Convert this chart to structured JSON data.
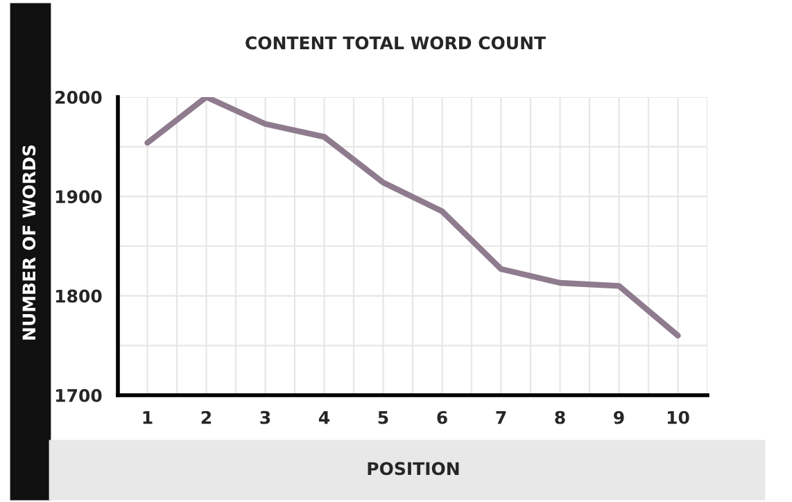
{
  "chart_data": {
    "type": "line",
    "title": "CONTENT TOTAL WORD COUNT",
    "xlabel": "POSITION",
    "ylabel": "NUMBER OF WORDS",
    "x": [
      1,
      2,
      3,
      4,
      5,
      6,
      7,
      8,
      9,
      10
    ],
    "series": [
      {
        "values": [
          1954,
          2000,
          1973,
          1960,
          1914,
          1885,
          1827,
          1813,
          1810,
          1760
        ],
        "color": "#8f7b8e"
      }
    ],
    "xlim": [
      0.5,
      10.5
    ],
    "xticks": [
      1,
      {
        "value": 1.5,
        "label": null
      },
      2,
      {
        "value": 2.5,
        "label": null
      },
      3,
      {
        "value": 3.5,
        "label": null
      },
      4,
      {
        "value": 4.5,
        "label": null
      },
      5,
      {
        "value": 5.5,
        "label": null
      },
      6,
      {
        "value": 6.5,
        "label": null
      },
      7,
      {
        "value": 7.5,
        "label": null
      },
      8,
      {
        "value": 8.5,
        "label": null
      },
      9,
      {
        "value": 9.5,
        "label": null
      },
      10,
      {
        "value": 10.5,
        "label": null
      }
    ],
    "ylim": [
      1700,
      2000
    ],
    "yticks": [
      1700,
      {
        "value": 1750,
        "label": null
      },
      1800,
      {
        "value": 1850,
        "label": null
      },
      1900,
      {
        "value": 1950,
        "label": null
      },
      2000
    ],
    "grid": true,
    "legend": false,
    "marker": "none",
    "line_style": "solid"
  }
}
